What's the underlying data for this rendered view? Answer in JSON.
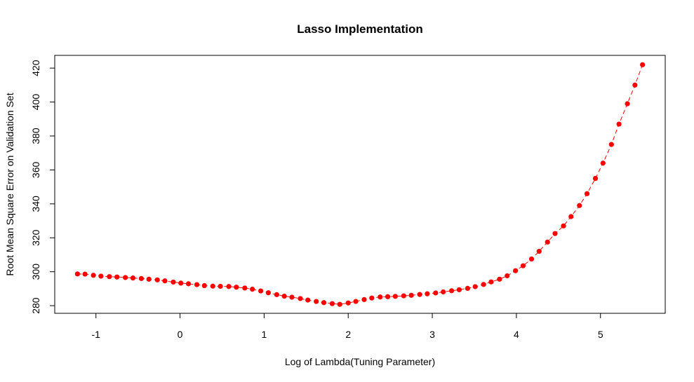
{
  "chart_data": {
    "type": "line",
    "title": "Lasso Implementation",
    "x_label": "Log of Lambda(Tuning Parameter)",
    "y_label": "Root Mean Square Error on Validation Set",
    "xlim": [
      -1.49,
      5.77
    ],
    "ylim": [
      275.5,
      427.5
    ],
    "xticks": [
      -1,
      0,
      1,
      2,
      3,
      4,
      5
    ],
    "yticks": [
      280,
      300,
      320,
      340,
      360,
      380,
      400,
      420
    ],
    "grid": false,
    "line_style": "dashed",
    "series": [
      {
        "color": "#ff0000",
        "x": [
          -1.22,
          -1.13,
          -1.03,
          -0.94,
          -0.84,
          -0.75,
          -0.65,
          -0.56,
          -0.46,
          -0.37,
          -0.27,
          -0.18,
          -0.08,
          0.01,
          0.1,
          0.2,
          0.29,
          0.39,
          0.48,
          0.58,
          0.67,
          0.77,
          0.86,
          0.96,
          1.05,
          1.15,
          1.24,
          1.33,
          1.43,
          1.52,
          1.62,
          1.71,
          1.81,
          1.9,
          2.0,
          2.09,
          2.19,
          2.28,
          2.38,
          2.47,
          2.56,
          2.66,
          2.75,
          2.85,
          2.94,
          3.04,
          3.13,
          3.23,
          3.32,
          3.42,
          3.51,
          3.61,
          3.7,
          3.8,
          3.89,
          3.99,
          4.08,
          4.18,
          4.27,
          4.37,
          4.46,
          4.56,
          4.65,
          4.75,
          4.84,
          4.94,
          5.03,
          5.13,
          5.22,
          5.32,
          5.41,
          5.5
        ],
        "values": [
          298.7,
          298.6,
          297.9,
          297.4,
          297.1,
          296.9,
          296.6,
          296.3,
          296.0,
          295.6,
          295.2,
          294.6,
          293.9,
          293.3,
          292.9,
          292.4,
          291.8,
          291.5,
          291.4,
          291.3,
          290.9,
          290.4,
          289.7,
          288.7,
          287.6,
          286.5,
          285.6,
          285.0,
          284.2,
          283.3,
          282.5,
          281.8,
          281.2,
          280.8,
          281.6,
          282.5,
          283.6,
          284.5,
          285.1,
          285.3,
          285.5,
          285.8,
          286.1,
          286.6,
          287.0,
          287.5,
          288.1,
          288.8,
          289.4,
          290.2,
          291.2,
          292.5,
          294.0,
          295.6,
          297.6,
          300.6,
          303.5,
          307.5,
          312.0,
          317.5,
          322.5,
          327.0,
          332.5,
          339.0,
          346.0,
          355.0,
          364.0,
          375.0,
          387.0,
          399.0,
          410.0,
          422.0
        ]
      }
    ]
  }
}
